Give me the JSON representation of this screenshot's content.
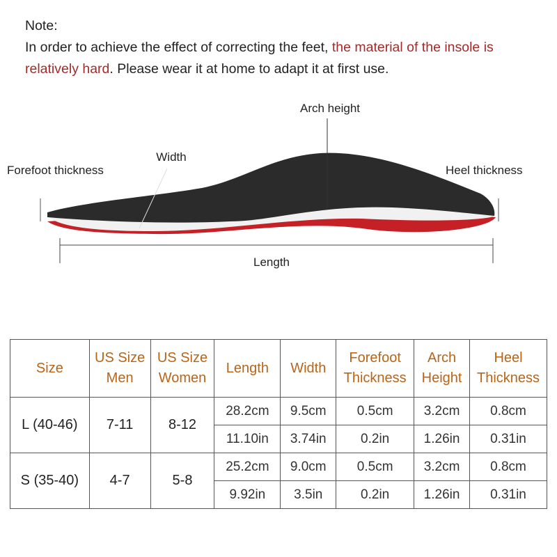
{
  "note": {
    "title": "Note:",
    "text": [
      "In order to achieve the effect of correcting the feet, ",
      "the material of the insole is relatively hard",
      ". Please wear it at home to adapt it at first use."
    ]
  },
  "diagram": {
    "arch": "Arch height",
    "width": "Width",
    "forefoot": "Forefoot thickness",
    "heel": "Heel thickness",
    "length": "Length"
  },
  "table": {
    "headers": [
      "Size",
      "US Size Men",
      "US Size Women",
      "Length",
      "Width",
      "Forefoot Thickness",
      "Arch Height",
      "Heel Thickness"
    ],
    "rows": [
      {
        "size": "L (40-46)",
        "men": "7-11",
        "women": "8-12",
        "metric": [
          "28.2cm",
          "9.5cm",
          "0.5cm",
          "3.2cm",
          "0.8cm"
        ],
        "imperial": [
          "11.10in",
          "3.74in",
          "0.2in",
          "1.26in",
          "0.31in"
        ]
      },
      {
        "size": "S (35-40)",
        "men": "4-7",
        "women": "5-8",
        "metric": [
          "25.2cm",
          "9.0cm",
          "0.5cm",
          "3.2cm",
          "0.8cm"
        ],
        "imperial": [
          "9.92in",
          "3.5in",
          "0.2in",
          "1.26in",
          "0.31in"
        ]
      }
    ]
  }
}
